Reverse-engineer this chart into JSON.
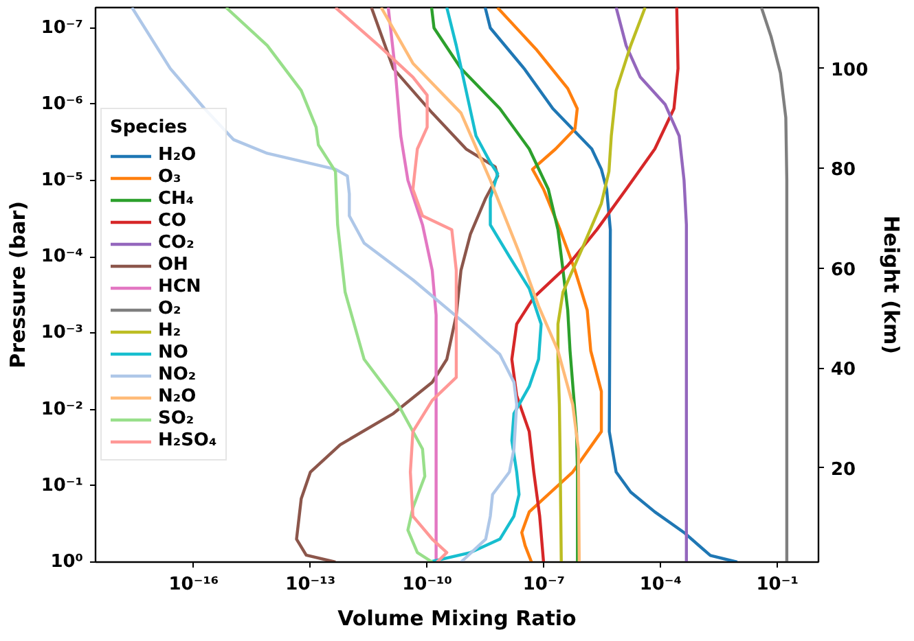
{
  "chart_data": {
    "type": "line",
    "xlabel": "Volume Mixing Ratio",
    "ylabel": "Pressure (bar)",
    "y2label": "Height (km)",
    "legend_title": "Species",
    "legend": "left",
    "grid": false,
    "log": "xy",
    "xlim": [
      3e-19,
      1.14
    ],
    "xticks": [
      {
        "value": 1e-16,
        "label": "10⁻¹⁶"
      },
      {
        "value": 1e-13,
        "label": "10⁻¹³"
      },
      {
        "value": 1e-10,
        "label": "10⁻¹⁰"
      },
      {
        "value": 1e-07,
        "label": "10⁻⁷"
      },
      {
        "value": 0.0001,
        "label": "10⁻⁴"
      },
      {
        "value": 0.1,
        "label": "10⁻¹"
      }
    ],
    "ylim": [
      1,
      5.4e-08
    ],
    "yticks": [
      {
        "value": 1e-07,
        "label": "10⁻⁷"
      },
      {
        "value": 1e-06,
        "label": "10⁻⁶"
      },
      {
        "value": 1e-05,
        "label": "10⁻⁵"
      },
      {
        "value": 0.0001,
        "label": "10⁻⁴"
      },
      {
        "value": 0.001,
        "label": "10⁻³"
      },
      {
        "value": 0.01,
        "label": "10⁻²"
      },
      {
        "value": 0.1,
        "label": "10⁻¹"
      },
      {
        "value": 1,
        "label": "10⁰"
      }
    ],
    "y2lim": [
      1.1,
      112.2
    ],
    "y2ticks": [
      20,
      40,
      60,
      80,
      100
    ],
    "series": [
      {
        "name": "H₂O",
        "color": "#1f77b4",
        "x": [
          3.1e-09,
          4.2e-09,
          3.1e-08,
          1.7e-07,
          1.7e-06,
          3e-06,
          4.1e-06,
          5.1e-06,
          4.8e-06,
          7.2e-06,
          1.7e-05,
          7.1e-05,
          0.0004,
          0.0019,
          0.0093
        ],
        "values": [
          5.4e-08,
          1e-07,
          3.4e-07,
          1.14e-06,
          3.85e-06,
          7.1e-06,
          1.3e-05,
          4.4e-05,
          0.0195,
          0.066,
          0.121,
          0.22,
          0.41,
          0.82,
          1.0
        ]
      },
      {
        "name": "O₃",
        "color": "#ff7f0e",
        "x": [
          6.4e-09,
          6.3e-08,
          4.1e-07,
          7.2e-07,
          6.3e-07,
          2e-07,
          5.1e-08,
          9.8e-08,
          2.6e-07,
          6.3e-07,
          1.3e-06,
          1.6e-06,
          3e-06,
          3e-06,
          5.5e-07,
          4.2e-08,
          2.7e-08,
          3.3e-08,
          4.8e-08
        ],
        "values": [
          5.4e-08,
          1.9e-07,
          6.2e-07,
          1.14e-06,
          2.1e-06,
          3.85e-06,
          7.1e-06,
          1.3e-05,
          4.4e-05,
          0.00015,
          0.0005,
          0.0017,
          0.0058,
          0.0195,
          0.066,
          0.22,
          0.41,
          0.61,
          1.0
        ]
      },
      {
        "name": "CH₄",
        "color": "#2ca02c",
        "x": [
          1.3e-10,
          1.5e-10,
          7.4e-10,
          7.4e-09,
          4.2e-08,
          1.3e-07,
          2.3e-07,
          3.1e-07,
          4.1e-07,
          4.7e-07,
          5.7e-07,
          6.9e-07,
          7.3e-07,
          7.3e-07
        ],
        "values": [
          5.4e-08,
          1e-07,
          3.4e-07,
          1.14e-06,
          3.85e-06,
          1.3e-05,
          4.4e-05,
          0.00015,
          0.0005,
          0.0017,
          0.0058,
          0.0195,
          0.066,
          1.0
        ]
      },
      {
        "name": "CO",
        "color": "#d62728",
        "x": [
          0.00026,
          0.00028,
          0.00022,
          7.1e-05,
          1.3e-05,
          2.3e-06,
          4.1e-07,
          5.5e-08,
          2e-08,
          1.5e-08,
          2e-08,
          4.2e-08,
          5.5e-08,
          7.8e-08,
          9.8e-08
        ],
        "values": [
          5.4e-08,
          3.4e-07,
          1.14e-06,
          3.85e-06,
          1.3e-05,
          4.4e-05,
          0.00013,
          0.00034,
          0.00076,
          0.0022,
          0.0066,
          0.0195,
          0.066,
          0.25,
          1.0
        ]
      },
      {
        "name": "CO₂",
        "color": "#9467bd",
        "x": [
          7.2e-06,
          1.3e-05,
          3e-05,
          0.00013,
          0.0003,
          0.0004,
          0.00046,
          0.00046
        ],
        "values": [
          5.4e-08,
          1.7e-07,
          4.4e-07,
          1e-06,
          2.6e-06,
          9.9e-06,
          3.8e-05,
          1.0
        ]
      },
      {
        "name": "OH",
        "color": "#8c564b",
        "x": [
          3.7e-12,
          1.35e-11,
          1.35e-10,
          1e-09,
          5.6e-09,
          6.5e-09,
          3.2e-09,
          1.3e-09,
          7.4e-10,
          5.6e-10,
          3.2e-10,
          1.35e-10,
          1.35e-11,
          5.8e-13,
          1e-13,
          5.8e-14,
          4.4e-14,
          7.8e-14,
          4.4e-13
        ],
        "values": [
          5.4e-08,
          3.4e-07,
          1.3e-06,
          3.85e-06,
          6.6e-06,
          8.7e-06,
          1.7e-05,
          5e-05,
          0.00015,
          0.00058,
          0.0022,
          0.0044,
          0.0113,
          0.029,
          0.066,
          0.148,
          0.5,
          0.81,
          1.0
        ]
      },
      {
        "name": "HCN",
        "color": "#e377c2",
        "x": [
          1e-11,
          1.5e-11,
          2.1e-11,
          3.2e-11,
          7.6e-11,
          1.35e-10,
          1.7e-10,
          1.7e-10
        ],
        "values": [
          5.4e-08,
          3.4e-07,
          2.6e-06,
          9.9e-06,
          3.8e-05,
          0.00015,
          0.00058,
          1.0
        ]
      },
      {
        "name": "O₂",
        "color": "#7f7f7f",
        "x": [
          0.039,
          0.069,
          0.12,
          0.165,
          0.175,
          0.175
        ],
        "values": [
          5.4e-08,
          1.3e-07,
          3.9e-07,
          1.5e-06,
          9.9e-06,
          1.0
        ]
      },
      {
        "name": "H₂",
        "color": "#bcbd22",
        "x": [
          4e-05,
          1.7e-05,
          7.2e-06,
          5.4e-06,
          4.7e-06,
          3e-06,
          9.8e-07,
          3.1e-07,
          2.3e-07,
          2.3e-07,
          2.5e-07,
          2.6e-07,
          2.8e-07
        ],
        "values": [
          5.4e-08,
          1.7e-07,
          6.6e-07,
          2.6e-06,
          7.6e-06,
          2e-05,
          7.6e-05,
          0.00029,
          0.00076,
          0.0022,
          0.0086,
          0.033,
          1.0
        ]
      },
      {
        "name": "NO",
        "color": "#17becf",
        "x": [
          3.2e-10,
          5.6e-10,
          1e-09,
          1.8e-09,
          4.2e-09,
          6.5e-09,
          4.2e-09,
          4.2e-09,
          1.3e-08,
          4.2e-08,
          8.5e-08,
          7.3e-08,
          4.2e-08,
          1.7e-08,
          1.5e-08,
          2e-08,
          2.3e-08,
          1.7e-08,
          7.4e-09,
          1.3e-09,
          1.15e-10
        ],
        "values": [
          5.4e-08,
          1.7e-07,
          6.6e-07,
          2.6e-06,
          5.8e-06,
          8.1e-06,
          1.7e-05,
          3.8e-05,
          9.9e-05,
          0.00026,
          0.00076,
          0.0022,
          0.005,
          0.0113,
          0.0255,
          0.066,
          0.13,
          0.25,
          0.5,
          0.75,
          1.0
        ]
      },
      {
        "name": "NO₂",
        "color": "#aec7e8",
        "x": [
          2.6e-18,
          2.5e-17,
          1.9e-16,
          1.05e-15,
          7.8e-15,
          4.4e-13,
          8.9e-13,
          1e-12,
          1e-12,
          2.4e-12,
          4.3e-11,
          1.3e-09,
          7.4e-09,
          1.7e-08,
          2e-08,
          1.7e-08,
          1.3e-08,
          4.8e-09,
          4.2e-09,
          3.2e-09,
          7.4e-10
        ],
        "values": [
          5.4e-08,
          3.4e-07,
          1.14e-06,
          2.9e-06,
          4.4e-06,
          7.1e-06,
          8.7e-06,
          1.5e-05,
          2.9e-05,
          6.6e-05,
          0.0002,
          0.00086,
          0.0019,
          0.0044,
          0.0086,
          0.033,
          0.066,
          0.13,
          0.25,
          0.5,
          1.0
        ]
      },
      {
        "name": "N₂O",
        "color": "#ffbb78",
        "x": [
          6.6e-12,
          4.3e-11,
          7.4e-10,
          4.2e-09,
          2.3e-08,
          7.3e-08,
          2.3e-07,
          5.5e-07,
          7.7e-07,
          8.1e-07
        ],
        "values": [
          5.4e-08,
          2.9e-07,
          1.3e-06,
          9.9e-06,
          8.7e-05,
          0.00044,
          0.0017,
          0.0086,
          0.033,
          1.0
        ]
      },
      {
        "name": "SO₂",
        "color": "#98df8a",
        "x": [
          6.8e-16,
          7.8e-15,
          5.8e-14,
          1.4e-13,
          1.6e-13,
          4.4e-13,
          5e-13,
          7.8e-13,
          2.4e-12,
          1.8e-11,
          7.6e-11,
          8.7e-11,
          4.3e-11,
          3.2e-11,
          5.6e-11,
          1.35e-10
        ],
        "values": [
          5.4e-08,
          1.7e-07,
          6.6e-07,
          2e-06,
          3.4e-06,
          7.6e-06,
          3.8e-05,
          0.00029,
          0.0022,
          0.0086,
          0.033,
          0.075,
          0.195,
          0.38,
          0.75,
          1.0
        ]
      },
      {
        "name": "H₂SO₄",
        "color": "#ff9896",
        "x": [
          4.4e-13,
          5.7e-12,
          4.3e-11,
          1e-10,
          1e-10,
          5.6e-11,
          4.3e-11,
          7.6e-11,
          4.3e-10,
          5.6e-10,
          5.6e-10,
          1.35e-10,
          4.3e-11,
          3.7e-11,
          4.3e-11,
          1.35e-10,
          3.2e-10,
          1.8e-10
        ],
        "values": [
          5.4e-08,
          1.7e-07,
          4.4e-07,
          7.6e-07,
          2e-06,
          3.85e-06,
          1.3e-05,
          2.9e-05,
          4.4e-05,
          0.00015,
          0.0038,
          0.0076,
          0.0195,
          0.066,
          0.25,
          0.5,
          0.75,
          1.0
        ]
      }
    ]
  }
}
